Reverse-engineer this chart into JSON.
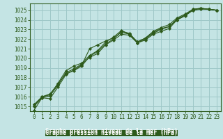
{
  "xlabel": "Graphe pression niveau de la mer (hPa)",
  "bg_color": "#c4e4e4",
  "plot_bg_color": "#c4e4e4",
  "bottom_bg_color": "#2d5a1b",
  "grid_color": "#9ec8c8",
  "line_color": "#2d5a1b",
  "xmin": -0.5,
  "xmax": 23.5,
  "ymin": 1014.5,
  "ymax": 1025.7,
  "yticks": [
    1015,
    1016,
    1017,
    1018,
    1019,
    1020,
    1021,
    1022,
    1023,
    1024,
    1025
  ],
  "xticks": [
    0,
    1,
    2,
    3,
    4,
    5,
    6,
    7,
    8,
    9,
    10,
    11,
    12,
    13,
    14,
    15,
    16,
    17,
    18,
    19,
    20,
    21,
    22,
    23
  ],
  "series": [
    [
      1014.6,
      1015.9,
      1015.8,
      1017.0,
      1018.3,
      1018.8,
      1019.3,
      1021.0,
      1021.4,
      1021.8,
      1022.1,
      1022.7,
      1022.5,
      1021.6,
      1021.9,
      1022.5,
      1022.8,
      1023.1,
      1024.0,
      1024.5,
      1025.1,
      1025.2,
      1025.1,
      1025.0
    ],
    [
      1015.0,
      1015.9,
      1016.1,
      1017.2,
      1018.5,
      1018.9,
      1019.4,
      1020.1,
      1020.5,
      1021.4,
      1021.9,
      1022.5,
      1022.4,
      1021.6,
      1022.0,
      1022.6,
      1023.0,
      1023.3,
      1024.1,
      1024.5,
      1025.0,
      1025.2,
      1025.1,
      1025.0
    ],
    [
      1015.1,
      1016.0,
      1016.3,
      1017.3,
      1018.4,
      1018.7,
      1019.2,
      1020.2,
      1020.7,
      1021.5,
      1022.0,
      1022.8,
      1022.6,
      1021.7,
      1022.1,
      1022.7,
      1023.1,
      1023.3,
      1024.0,
      1024.4,
      1025.0,
      1025.1,
      1025.1,
      1025.0
    ],
    [
      1015.2,
      1016.0,
      1016.2,
      1017.4,
      1018.7,
      1019.2,
      1019.5,
      1020.3,
      1020.8,
      1021.7,
      1022.2,
      1022.9,
      1022.5,
      1021.7,
      1022.1,
      1022.8,
      1023.2,
      1023.5,
      1024.2,
      1024.6,
      1025.1,
      1025.2,
      1025.1,
      1025.0
    ]
  ],
  "marker": "D",
  "marker_size": 2.2,
  "tick_fontsize": 5.5,
  "xlabel_fontsize": 6.0
}
